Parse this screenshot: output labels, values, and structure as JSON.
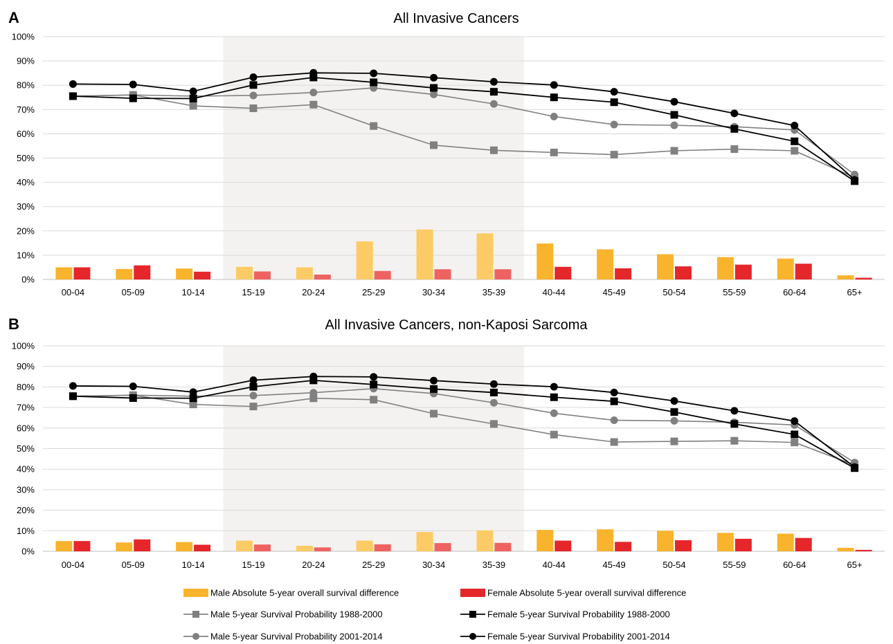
{
  "legend": [
    {
      "kind": "bar",
      "label": "Male Absolute 5-year overall survival difference",
      "color": "#F9B42D"
    },
    {
      "kind": "bar",
      "label": "Female Absolute 5-year overall survival difference",
      "color": "#E5262B"
    },
    {
      "kind": "line",
      "marker": "square",
      "label": "Male 5-year Survival Probability 1988-2000",
      "color": "#808080"
    },
    {
      "kind": "line",
      "marker": "square",
      "label": "Female 5-year Survival Probability 1988-2000",
      "color": "#000000"
    },
    {
      "kind": "line",
      "marker": "circle",
      "label": "Male 5-year Survival Probability 2001-2014",
      "color": "#808080"
    },
    {
      "kind": "line",
      "marker": "circle",
      "label": "Female 5-year Survival Probability 2001-2014",
      "color": "#000000"
    }
  ],
  "highlight_colors": {
    "male_bar": "#FCCB65",
    "female_bar": "#EE6361",
    "band": "#F3F2F0"
  },
  "chart_data": [
    {
      "panel": "A",
      "type": "bar+line",
      "title": "All Invasive Cancers",
      "categories": [
        "00-04",
        "05-09",
        "10-14",
        "15-19",
        "20-24",
        "25-29",
        "30-34",
        "35-39",
        "40-44",
        "45-49",
        "50-54",
        "55-59",
        "60-64",
        "65+"
      ],
      "ylim": [
        0,
        100
      ],
      "yticks": [
        "0%",
        "10%",
        "20%",
        "30%",
        "40%",
        "50%",
        "60%",
        "70%",
        "80%",
        "90%",
        "100%"
      ],
      "shaded_categories": [
        "15-19",
        "35-39"
      ],
      "grid": true,
      "legend_position": "bottom",
      "bars": [
        {
          "name": "Male Absolute 5-year overall survival difference",
          "color": "#F9B42D",
          "values": [
            5,
            4.3,
            4.5,
            5.2,
            5,
            15.7,
            20.6,
            19,
            14.8,
            12.4,
            10.4,
            9.2,
            8.6,
            1.7
          ]
        },
        {
          "name": "Female Absolute 5-year overall survival difference",
          "color": "#E5262B",
          "values": [
            5,
            5.8,
            3.2,
            3.3,
            2,
            3.5,
            4.2,
            4.2,
            5.2,
            4.6,
            5.4,
            6.1,
            6.5,
            0.7
          ]
        }
      ],
      "series": [
        {
          "name": "Male 5-year Survival Probability 1988-2000",
          "marker": "square",
          "color": "#808080",
          "values": [
            75.5,
            76,
            71.5,
            70.5,
            72,
            63.2,
            55.3,
            53.2,
            52.3,
            51.4,
            53,
            53.7,
            53,
            42
          ]
        },
        {
          "name": "Male 5-year Survival Probability 2001-2014",
          "marker": "circle",
          "color": "#808080",
          "values": [
            75.5,
            76,
            75.5,
            75.8,
            77,
            78.9,
            76.2,
            72.3,
            67.1,
            63.8,
            63.5,
            62.9,
            61.6,
            43.2
          ]
        },
        {
          "name": "Female 5-year Survival Probability 1988-2000",
          "marker": "square",
          "color": "#000000",
          "values": [
            75.5,
            74.6,
            74.5,
            80.1,
            83.2,
            81.2,
            78.9,
            77.3,
            75,
            73,
            67.8,
            62,
            56.9,
            40.5
          ]
        },
        {
          "name": "Female 5-year Survival Probability 2001-2014",
          "marker": "circle",
          "color": "#000000",
          "values": [
            80.5,
            80.3,
            77.5,
            83.3,
            85.1,
            84.9,
            83.1,
            81.4,
            80.1,
            77.3,
            73.2,
            68.4,
            63.4,
            41
          ]
        }
      ]
    },
    {
      "panel": "B",
      "type": "bar+line",
      "title": "All Invasive Cancers, non-Kaposi Sarcoma",
      "categories": [
        "00-04",
        "05-09",
        "10-14",
        "15-19",
        "20-24",
        "25-29",
        "30-34",
        "35-39",
        "40-44",
        "45-49",
        "50-54",
        "55-59",
        "60-64",
        "65+"
      ],
      "ylim": [
        0,
        100
      ],
      "yticks": [
        "0%",
        "10%",
        "20%",
        "30%",
        "40%",
        "50%",
        "60%",
        "70%",
        "80%",
        "90%",
        "100%"
      ],
      "shaded_categories": [
        "15-19",
        "35-39"
      ],
      "grid": true,
      "legend_position": "bottom",
      "bars": [
        {
          "name": "Male Absolute 5-year overall survival difference",
          "color": "#F9B42D",
          "values": [
            5,
            4.3,
            4.5,
            5.2,
            2.7,
            5.2,
            9.4,
            10.2,
            10.4,
            10.7,
            10,
            9,
            8.6,
            1.7
          ]
        },
        {
          "name": "Female Absolute 5-year overall survival difference",
          "color": "#E5262B",
          "values": [
            5,
            5.8,
            3.2,
            3.3,
            1.9,
            3.4,
            4,
            4.1,
            5.2,
            4.6,
            5.4,
            6.1,
            6.5,
            0.7
          ]
        }
      ],
      "series": [
        {
          "name": "Male 5-year Survival Probability 1988-2000",
          "marker": "square",
          "color": "#808080",
          "values": [
            75.5,
            76,
            71.5,
            70.5,
            74.5,
            73.8,
            67,
            62,
            56.8,
            53.2,
            53.5,
            53.8,
            53,
            42
          ]
        },
        {
          "name": "Male 5-year Survival Probability 2001-2014",
          "marker": "circle",
          "color": "#808080",
          "values": [
            75.5,
            76,
            75.5,
            75.8,
            77.2,
            79.2,
            76.8,
            72.3,
            67.2,
            63.8,
            63.5,
            62.8,
            61.5,
            43.2
          ]
        },
        {
          "name": "Female 5-year Survival Probability 1988-2000",
          "marker": "square",
          "color": "#000000",
          "values": [
            75.5,
            74.6,
            74.5,
            80.1,
            83.2,
            81.2,
            79,
            77.3,
            75,
            73,
            67.8,
            62,
            56.9,
            40.5
          ]
        },
        {
          "name": "Female 5-year Survival Probability 2001-2014",
          "marker": "circle",
          "color": "#000000",
          "values": [
            80.5,
            80.3,
            77.5,
            83.3,
            85.1,
            84.9,
            83.1,
            81.4,
            80.1,
            77.3,
            73.2,
            68.4,
            63.4,
            41
          ]
        }
      ]
    }
  ]
}
